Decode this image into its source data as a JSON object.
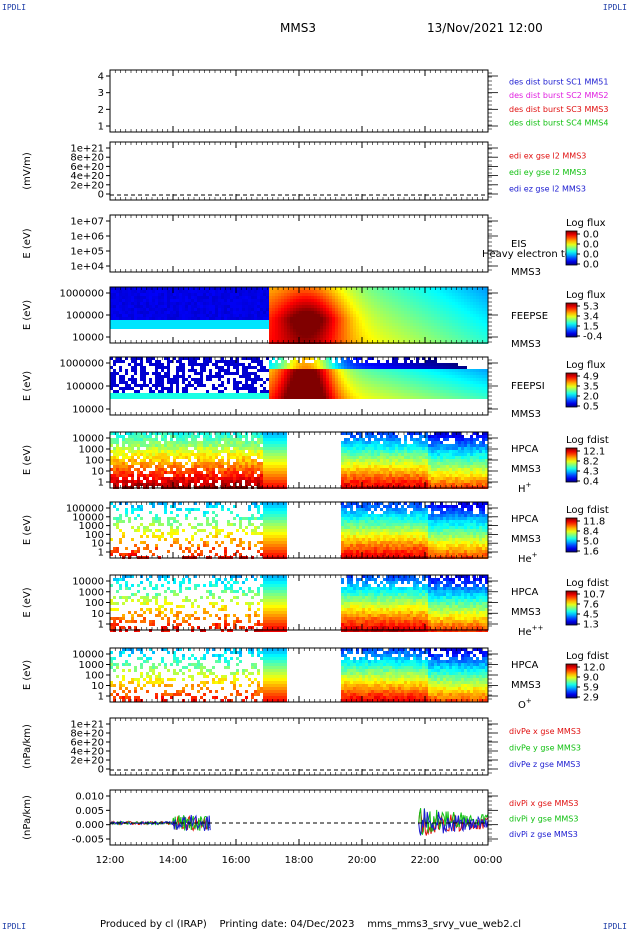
{
  "header": {
    "corner_left_top": "IPDLI",
    "corner_right_top": "IPDLI",
    "corner_left_bottom": "IPDLI",
    "corner_right_bottom": "IPDLI",
    "title": "MMS3",
    "date": "13/Nov/2021 12:00"
  },
  "footer": {
    "produced": "Produced by cl (IRAP)",
    "printing": "Printing date: 04/Dec/2023",
    "file": "mms_mms3_srvy_vue_web2.cl"
  },
  "colors": {
    "mms1": "#1a1ad0",
    "mms2": "#e020e0",
    "mms3": "#e01010",
    "mms4": "#10c010",
    "x": "#e01010",
    "y": "#10c010",
    "z": "#1a1ad0"
  },
  "chart_data": {
    "type": "multi-panel",
    "x_axis": {
      "ticks": [
        "12:00",
        "14:00",
        "16:00",
        "18:00",
        "20:00",
        "22:00",
        "00:00"
      ],
      "range_hours": [
        12,
        24
      ]
    },
    "panels": [
      {
        "id": "des-dist",
        "type": "empty-line",
        "ylabel": "",
        "yticks": [
          "4",
          "3",
          "2",
          "1"
        ],
        "legend": [
          {
            "text": "des dist burst SC1 MM51",
            "color": "#1a1ad0"
          },
          {
            "text": "des dist burst SC2 MMS2",
            "color": "#e020e0"
          },
          {
            "text": "des dist burst SC3 MMS3",
            "color": "#e01010"
          },
          {
            "text": "des dist burst SC4 MMS4",
            "color": "#10c010"
          }
        ]
      },
      {
        "id": "edi",
        "type": "empty-line",
        "ylabel": "(mV/m)",
        "yticks": [
          "1e+21",
          "8e+20",
          "6e+20",
          "4e+20",
          "2e+20",
          "0"
        ],
        "legend": [
          {
            "text": "edi ex gse l2 MMS3",
            "color": "#e01010"
          },
          {
            "text": "edi ey gse l2 MMS3",
            "color": "#10c010"
          },
          {
            "text": "edi ez gse l2 MMS3",
            "color": "#1a1ad0"
          }
        ]
      },
      {
        "id": "eis",
        "type": "spectrogram-empty",
        "ylabel": "E (eV)",
        "yticks": [
          "1e+07",
          "1e+06",
          "1e+05",
          "1e+04"
        ],
        "side_labels": [
          "EIS",
          "MMS3"
        ],
        "overlay_text": "Heavy electron tof",
        "cbar_title": "Log flux",
        "cbar_ticks": [
          "0.0",
          "0.0",
          "0.0",
          "0.0"
        ]
      },
      {
        "id": "feepse",
        "type": "spectrogram",
        "ylabel": "E (eV)",
        "yticks": [
          "1000000",
          "100000",
          "10000"
        ],
        "side_labels": [
          "FEEPSE",
          "MMS3"
        ],
        "cbar_title": "Log flux",
        "cbar_ticks": [
          "5.3",
          "3.4",
          "1.5",
          "-0.4"
        ],
        "data_window_hours": [
          12,
          24
        ]
      },
      {
        "id": "feepsi",
        "type": "spectrogram",
        "ylabel": "E (eV)",
        "yticks": [
          "1000000",
          "100000",
          "10000"
        ],
        "side_labels": [
          "FEEPSI",
          "MMS3"
        ],
        "cbar_title": "Log flux",
        "cbar_ticks": [
          "4.9",
          "3.5",
          "2.0",
          "0.5"
        ],
        "data_window_hours": [
          12,
          24
        ]
      },
      {
        "id": "hpca-h",
        "type": "spectrogram",
        "ylabel": "E (eV)",
        "yticks": [
          "10000",
          "1000",
          "100",
          "10",
          "1"
        ],
        "side_labels": [
          "HPCA",
          "MMS3",
          "H+"
        ],
        "cbar_title": "Log fdist",
        "cbar_ticks": [
          "12.1",
          "8.2",
          "4.3",
          "0.4"
        ],
        "data_gap_hours": [
          17.6,
          19.3
        ]
      },
      {
        "id": "hpca-he",
        "type": "spectrogram",
        "ylabel": "E (eV)",
        "yticks": [
          "100000",
          "10000",
          "1000",
          "100",
          "10",
          "1"
        ],
        "side_labels": [
          "HPCA",
          "MMS3",
          "He+"
        ],
        "cbar_title": "Log fdist",
        "cbar_ticks": [
          "11.8",
          "8.4",
          "5.0",
          "1.6"
        ],
        "data_gap_hours": [
          17.6,
          19.3
        ]
      },
      {
        "id": "hpca-he2",
        "type": "spectrogram",
        "ylabel": "E (eV)",
        "yticks": [
          "10000",
          "1000",
          "100",
          "10",
          "1"
        ],
        "side_labels": [
          "HPCA",
          "MMS3",
          "He++"
        ],
        "cbar_title": "Log fdist",
        "cbar_ticks": [
          "10.7",
          "7.6",
          "4.5",
          "1.3"
        ],
        "data_gap_hours": [
          17.6,
          19.3
        ]
      },
      {
        "id": "hpca-o",
        "type": "spectrogram",
        "ylabel": "E (eV)",
        "yticks": [
          "10000",
          "1000",
          "100",
          "10",
          "1"
        ],
        "side_labels": [
          "HPCA",
          "MMS3",
          "O+"
        ],
        "cbar_title": "Log fdist",
        "cbar_ticks": [
          "12.0",
          "9.0",
          "5.9",
          "2.9"
        ],
        "data_gap_hours": [
          17.6,
          19.3
        ]
      },
      {
        "id": "divpe",
        "type": "empty-line",
        "ylabel": "(nPa/km)",
        "yticks": [
          "1e+21",
          "8e+20",
          "6e+20",
          "4e+20",
          "2e+20",
          "0"
        ],
        "legend": [
          {
            "text": "divPe x gse MMS3",
            "color": "#e01010"
          },
          {
            "text": "divPe y gse MMS3",
            "color": "#10c010"
          },
          {
            "text": "divPe z gse MMS3",
            "color": "#1a1ad0"
          }
        ]
      },
      {
        "id": "divpi",
        "type": "line",
        "ylabel": "(nPa/km)",
        "yticks": [
          "0.010",
          "0.005",
          "0.000",
          "-0.005"
        ],
        "ylim": [
          -0.008,
          0.012
        ],
        "legend": [
          {
            "text": "divPi x gse MMS3",
            "color": "#e01010"
          },
          {
            "text": "divPi y gse MMS3",
            "color": "#10c010"
          },
          {
            "text": "divPi z gse MMS3",
            "color": "#1a1ad0"
          }
        ],
        "data_windows_hours": [
          [
            12,
            15.2
          ],
          [
            21.8,
            24
          ]
        ]
      }
    ]
  }
}
